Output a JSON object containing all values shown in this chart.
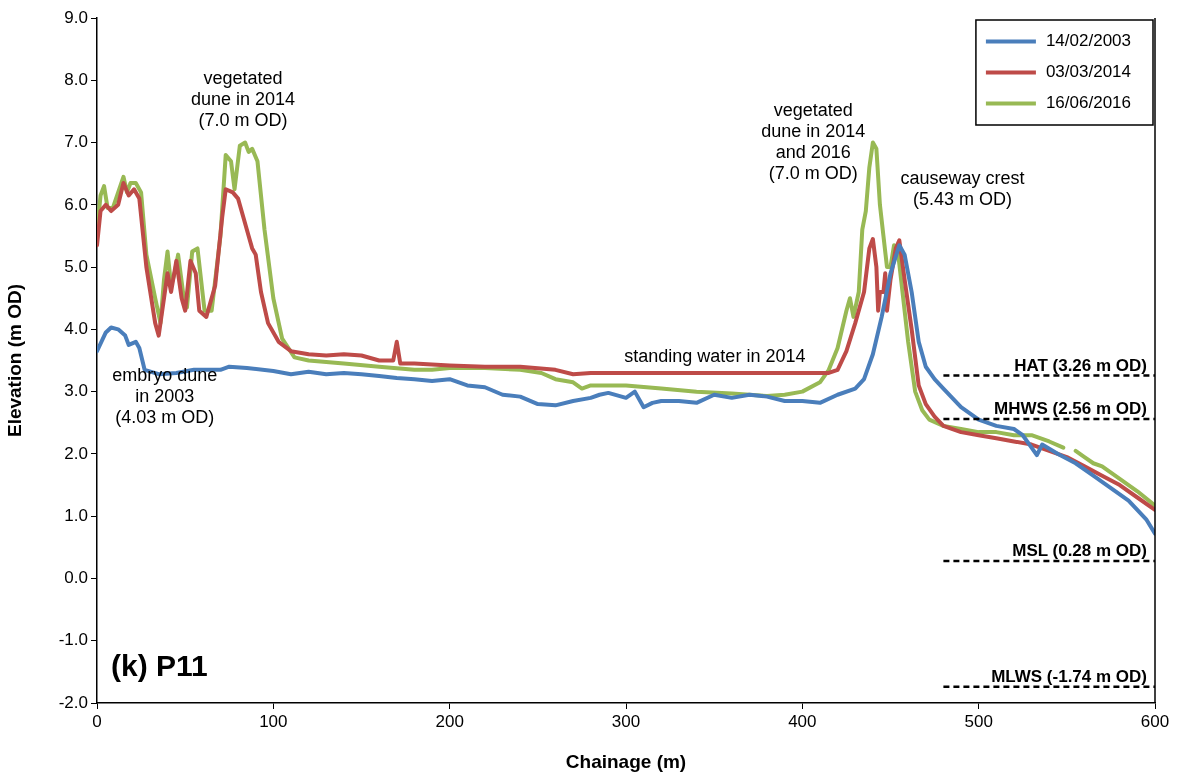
{
  "chart_data": {
    "type": "line",
    "title": "(k) P11",
    "xlabel": "Chainage (m)",
    "ylabel": "Elevation (m OD)",
    "xlim": [
      0,
      600
    ],
    "xticks": [
      0,
      100,
      200,
      300,
      400,
      500,
      600
    ],
    "ylim": [
      -2,
      9
    ],
    "yticks": [
      {
        "value": -2,
        "label": "-2.0"
      },
      {
        "value": -1,
        "label": "-1.0"
      },
      {
        "value": 0,
        "label": "0.0"
      },
      {
        "value": 1,
        "label": "1.0"
      },
      {
        "value": 2,
        "label": "2.0"
      },
      {
        "value": 3,
        "label": "3.0"
      },
      {
        "value": 4,
        "label": "4.0"
      },
      {
        "value": 5,
        "label": "5.0"
      },
      {
        "value": 6,
        "label": "6.0"
      },
      {
        "value": 7,
        "label": "7.0"
      },
      {
        "value": 8,
        "label": "8.0"
      },
      {
        "value": 9,
        "label": "9.0"
      }
    ],
    "grid": false,
    "legend": "top right",
    "marker": "none",
    "line_style": "solid",
    "series": [
      {
        "name": "14/02/2003",
        "color": "#4a7ebb",
        "x": [
          0,
          5,
          8,
          12,
          16,
          18,
          22,
          24,
          27,
          35,
          45,
          55,
          70,
          75,
          85,
          100,
          110,
          120,
          130,
          140,
          150,
          160,
          170,
          180,
          190,
          200,
          210,
          220,
          230,
          240,
          250,
          260,
          270,
          280,
          285,
          290,
          300,
          305,
          310,
          315,
          320,
          330,
          340,
          350,
          360,
          370,
          380,
          390,
          400,
          410,
          420,
          430,
          435,
          440,
          445,
          450,
          455,
          458,
          462,
          466,
          470,
          475,
          480,
          490,
          500,
          510,
          520,
          525,
          530,
          533,
          536,
          545,
          555,
          565,
          575,
          585,
          595,
          600
        ],
        "values": [
          3.65,
          3.95,
          4.03,
          4.0,
          3.9,
          3.75,
          3.8,
          3.7,
          3.35,
          3.28,
          3.3,
          3.35,
          3.35,
          3.4,
          3.38,
          3.33,
          3.28,
          3.32,
          3.28,
          3.3,
          3.28,
          3.25,
          3.22,
          3.2,
          3.17,
          3.2,
          3.1,
          3.07,
          2.95,
          2.92,
          2.8,
          2.78,
          2.85,
          2.9,
          2.95,
          2.98,
          2.9,
          3.0,
          2.75,
          2.82,
          2.85,
          2.85,
          2.82,
          2.95,
          2.9,
          2.95,
          2.92,
          2.85,
          2.85,
          2.82,
          2.95,
          3.05,
          3.2,
          3.6,
          4.2,
          4.9,
          5.35,
          5.2,
          4.6,
          3.8,
          3.4,
          3.2,
          3.05,
          2.75,
          2.55,
          2.45,
          2.4,
          2.3,
          2.1,
          1.98,
          2.15,
          2.0,
          1.85,
          1.65,
          1.45,
          1.25,
          0.95,
          0.72
        ]
      },
      {
        "name": "03/03/2014",
        "color": "#be4b48",
        "x": [
          0,
          2,
          5,
          8,
          12,
          15,
          18,
          21,
          24,
          28,
          33,
          35,
          38,
          40,
          42,
          45,
          48,
          50,
          53,
          56,
          58,
          62,
          67,
          71,
          73,
          77,
          80,
          83,
          86,
          88,
          90,
          93,
          97,
          103,
          110,
          120,
          130,
          140,
          150,
          160,
          168,
          170,
          172,
          180,
          200,
          220,
          240,
          260,
          270,
          280,
          300,
          320,
          340,
          360,
          380,
          400,
          415,
          420,
          425,
          430,
          435,
          438,
          440,
          442,
          443,
          444,
          446,
          447,
          448,
          450,
          453,
          455,
          458,
          462,
          466,
          470,
          475,
          480,
          490,
          500,
          510,
          520,
          530,
          540,
          550,
          560,
          570,
          580,
          590,
          600
        ],
        "values": [
          5.35,
          5.9,
          6.0,
          5.9,
          6.0,
          6.35,
          6.15,
          6.25,
          6.1,
          5.0,
          4.1,
          3.9,
          4.5,
          4.9,
          4.6,
          5.1,
          4.5,
          4.3,
          5.1,
          4.9,
          4.3,
          4.2,
          4.7,
          5.8,
          6.25,
          6.2,
          6.1,
          5.8,
          5.5,
          5.3,
          5.2,
          4.6,
          4.1,
          3.8,
          3.65,
          3.6,
          3.58,
          3.6,
          3.58,
          3.5,
          3.5,
          3.8,
          3.45,
          3.45,
          3.42,
          3.4,
          3.4,
          3.35,
          3.28,
          3.3,
          3.3,
          3.3,
          3.3,
          3.3,
          3.3,
          3.3,
          3.3,
          3.35,
          3.65,
          4.1,
          4.6,
          5.3,
          5.45,
          5.0,
          4.3,
          4.6,
          4.6,
          4.9,
          4.3,
          4.8,
          5.3,
          5.43,
          4.8,
          4.0,
          3.1,
          2.8,
          2.6,
          2.45,
          2.35,
          2.3,
          2.25,
          2.2,
          2.15,
          2.05,
          1.95,
          1.8,
          1.65,
          1.5,
          1.3,
          1.1
        ]
      },
      {
        "name": "16/06/2016",
        "color": "#98b954",
        "x": [
          0,
          2,
          4,
          6,
          9,
          12,
          15,
          17,
          19,
          22,
          25,
          28,
          33,
          36,
          38,
          40,
          42,
          44,
          46,
          49,
          51,
          54,
          57,
          61,
          65,
          70,
          73,
          76,
          78,
          81,
          84,
          86,
          88,
          91,
          95,
          100,
          105,
          112,
          120,
          140,
          160,
          180,
          190,
          200,
          220,
          240,
          252,
          260,
          270,
          275,
          280,
          300,
          320,
          340,
          360,
          380,
          390,
          400,
          410,
          415,
          420,
          425,
          427,
          429,
          432,
          434,
          436,
          438,
          440,
          442,
          444,
          446,
          448,
          450,
          452,
          454,
          456,
          460,
          464,
          468,
          472,
          480,
          490,
          500,
          510,
          520,
          530,
          540,
          548,
          550,
          555,
          560,
          565,
          570,
          580,
          590,
          600
        ],
        "values": [
          5.55,
          6.15,
          6.3,
          5.95,
          5.95,
          6.2,
          6.45,
          6.2,
          6.35,
          6.35,
          6.2,
          5.2,
          4.5,
          4.1,
          4.8,
          5.25,
          4.7,
          4.9,
          5.2,
          4.55,
          4.35,
          5.25,
          5.3,
          4.3,
          4.3,
          5.5,
          6.8,
          6.7,
          6.25,
          6.95,
          7.0,
          6.85,
          6.9,
          6.7,
          5.6,
          4.5,
          3.85,
          3.55,
          3.5,
          3.45,
          3.4,
          3.35,
          3.35,
          3.38,
          3.38,
          3.35,
          3.3,
          3.2,
          3.15,
          3.05,
          3.1,
          3.1,
          3.05,
          3.0,
          2.97,
          2.93,
          2.95,
          3.0,
          3.15,
          3.35,
          3.7,
          4.3,
          4.5,
          4.2,
          4.6,
          5.6,
          5.9,
          6.6,
          7.0,
          6.9,
          6.0,
          5.5,
          5.0,
          5.0,
          5.35,
          5.3,
          4.8,
          3.8,
          3.0,
          2.7,
          2.55,
          2.45,
          2.4,
          2.35,
          2.35,
          2.3,
          2.3,
          2.2,
          2.1,
          null,
          2.05,
          1.95,
          1.85,
          1.8,
          1.6,
          1.4,
          1.17
        ]
      }
    ],
    "ref_lines": [
      {
        "axis": "y",
        "value": 3.26,
        "label": "HAT (3.26 m OD)",
        "color": "#000000",
        "line_style": "dashed"
      },
      {
        "axis": "y",
        "value": 2.56,
        "label": "MHWS (2.56 m OD)",
        "color": "#000000",
        "line_style": "dashed"
      },
      {
        "axis": "y",
        "value": 0.28,
        "label": "MSL (0.28 m OD)",
        "color": "#000000",
        "line_style": "dashed"
      },
      {
        "axis": "y",
        "value": -1.74,
        "label": "MLWS (-1.74 m OD)",
        "color": "#000000",
        "line_style": "dashed"
      }
    ],
    "annotations": [
      "vegetated\ndune in 2014\n(7.0 m OD)",
      "embryo dune\nin 2003\n(4.03 m OD)",
      "standing water in 2014",
      "vegetated\ndune in 2014\nand 2016\n(7.0 m OD)",
      "causeway crest\n(5.43 m OD)"
    ]
  }
}
